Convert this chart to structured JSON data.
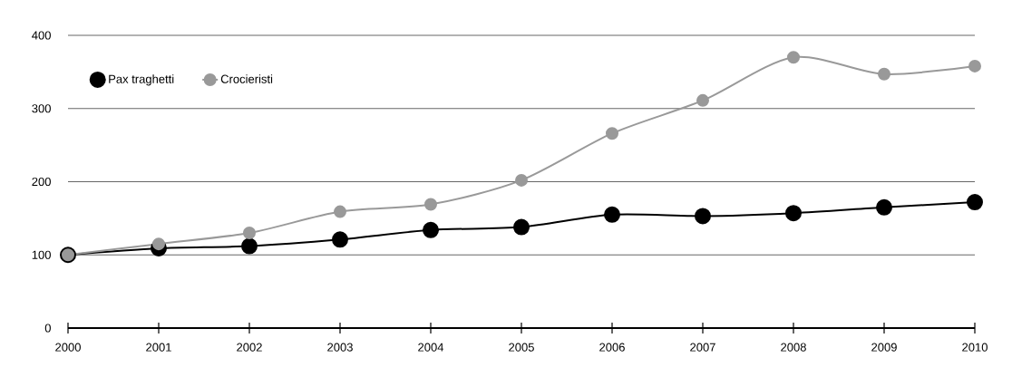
{
  "chart_data": {
    "type": "line",
    "categories": [
      "2000",
      "2001",
      "2002",
      "2003",
      "2004",
      "2005",
      "2006",
      "2007",
      "2008",
      "2009",
      "2010"
    ],
    "series": [
      {
        "name": "Pax traghetti",
        "color": "#000000",
        "values": [
          100,
          109,
          112,
          121,
          134,
          138,
          155,
          153,
          157,
          165,
          172
        ]
      },
      {
        "name": "Crocieristi",
        "color": "#999999",
        "values": [
          100,
          115,
          130,
          159,
          169,
          202,
          266,
          311,
          370,
          347,
          358
        ]
      }
    ],
    "ylim": [
      0,
      400
    ],
    "yticks": [
      0,
      100,
      200,
      300,
      400
    ],
    "grid": "y",
    "legend": "top left",
    "marker": "circle",
    "line_style": "solid"
  }
}
